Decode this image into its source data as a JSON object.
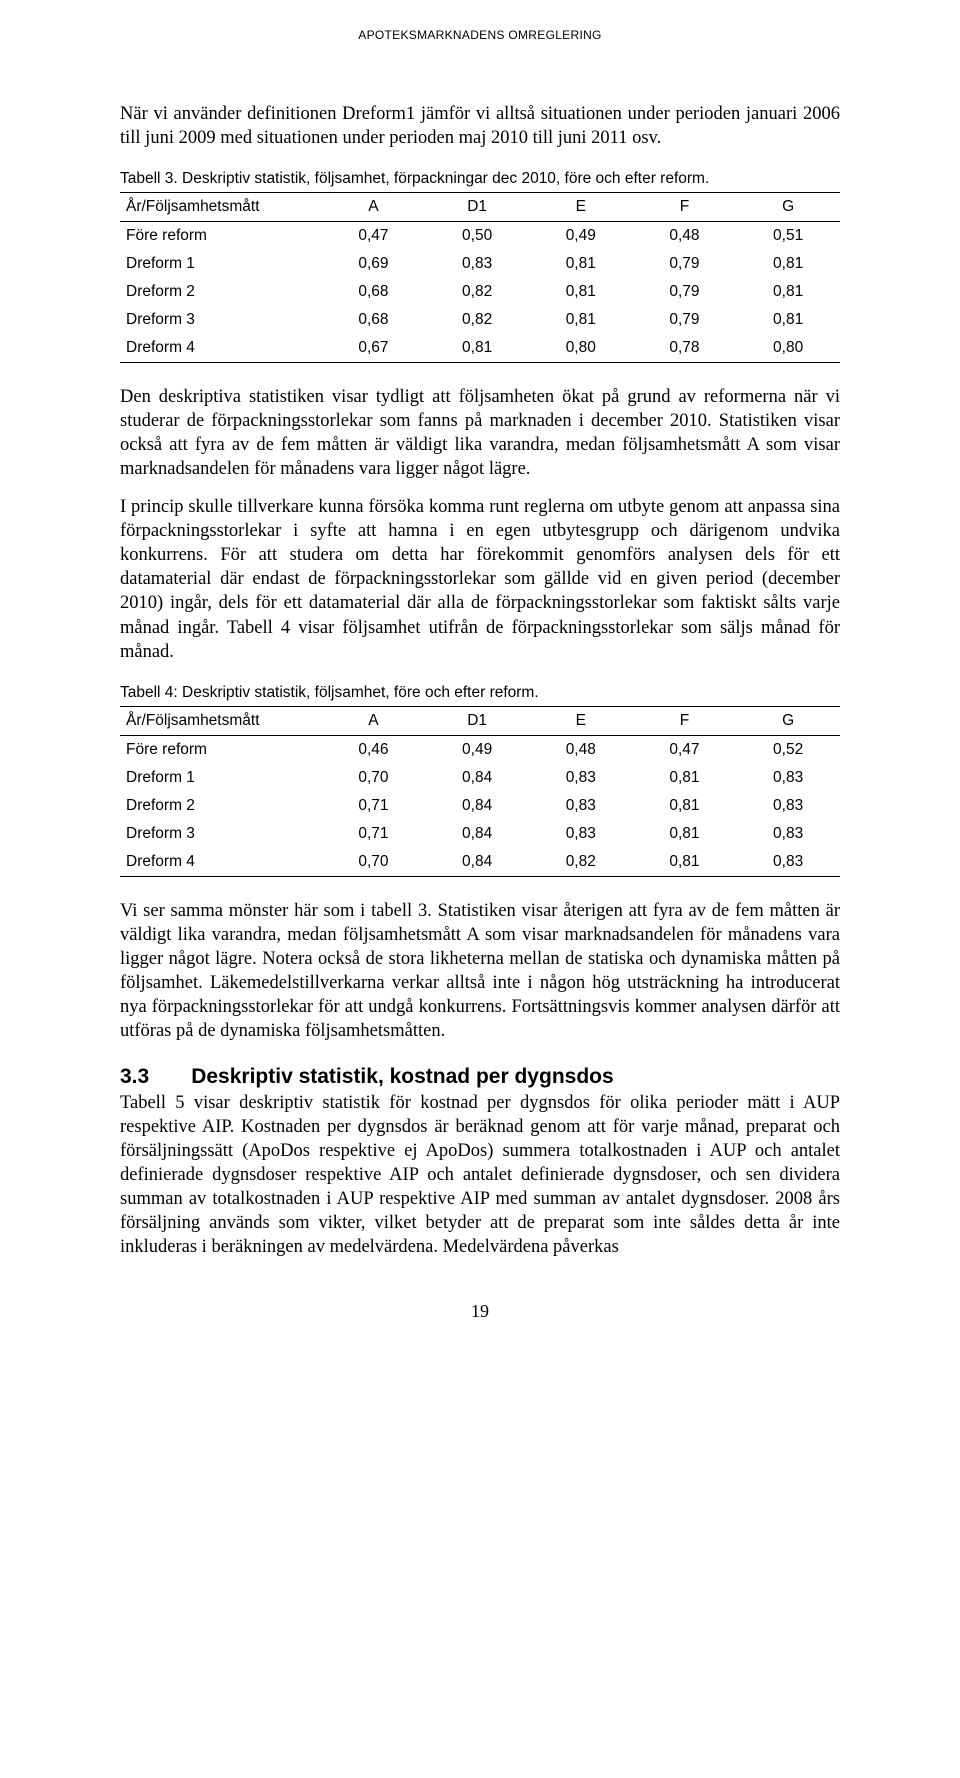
{
  "header": "APOTEKSMARKNADENS OMREGLERING",
  "p1": "När vi använder definitionen Dreform1 jämför vi alltså situationen under perioden januari 2006 till juni 2009 med situationen under perioden maj 2010 till juni 2011 osv.",
  "table3": {
    "caption": "Tabell 3. Deskriptiv statistik, följsamhet, förpackningar dec 2010, före och efter reform.",
    "headers": [
      "År/Följsamhetsmått",
      "A",
      "D1",
      "E",
      "F",
      "G"
    ],
    "rows": [
      [
        "Före reform",
        "0,47",
        "0,50",
        "0,49",
        "0,48",
        "0,51"
      ],
      [
        "Dreform 1",
        "0,69",
        "0,83",
        "0,81",
        "0,79",
        "0,81"
      ],
      [
        "Dreform 2",
        "0,68",
        "0,82",
        "0,81",
        "0,79",
        "0,81"
      ],
      [
        "Dreform 3",
        "0,68",
        "0,82",
        "0,81",
        "0,79",
        "0,81"
      ],
      [
        "Dreform 4",
        "0,67",
        "0,81",
        "0,80",
        "0,78",
        "0,80"
      ]
    ]
  },
  "p2": "Den deskriptiva statistiken visar tydligt att följsamheten ökat på grund av reformerna när vi studerar de förpackningsstorlekar som fanns på marknaden i december 2010. Statistiken visar också att fyra av de fem måtten är väldigt lika varandra, medan följsamhetsmått A som visar marknadsandelen för månadens vara ligger något lägre.",
  "p3": "I princip skulle tillverkare kunna försöka komma runt reglerna om utbyte genom att anpassa sina förpackningsstorlekar i syfte att hamna i en egen utbytesgrupp och därigenom undvika konkurrens. För att studera om detta har förekommit genomförs analysen dels för ett datamaterial där endast de förpackningsstorlekar som gällde vid en given period (december 2010) ingår, dels för ett datamaterial där alla de förpackningsstorlekar som faktiskt sålts varje månad ingår. Tabell 4 visar följsamhet utifrån de förpackningsstorlekar som säljs månad för månad.",
  "table4": {
    "caption": "Tabell 4: Deskriptiv statistik, följsamhet, före och efter reform.",
    "headers": [
      "År/Följsamhetsmått",
      "A",
      "D1",
      "E",
      "F",
      "G"
    ],
    "rows": [
      [
        "Före reform",
        "0,46",
        "0,49",
        "0,48",
        "0,47",
        "0,52"
      ],
      [
        "Dreform 1",
        "0,70",
        "0,84",
        "0,83",
        "0,81",
        "0,83"
      ],
      [
        "Dreform 2",
        "0,71",
        "0,84",
        "0,83",
        "0,81",
        "0,83"
      ],
      [
        "Dreform 3",
        "0,71",
        "0,84",
        "0,83",
        "0,81",
        "0,83"
      ],
      [
        "Dreform 4",
        "0,70",
        "0,84",
        "0,82",
        "0,81",
        "0,83"
      ]
    ]
  },
  "p4": "Vi ser samma mönster här som i tabell 3. Statistiken visar återigen att fyra av de fem måtten är väldigt lika varandra, medan följsamhetsmått A som visar marknadsandelen för månadens vara ligger något lägre. Notera också de stora likheterna mellan de statiska och dynamiska måtten på följsamhet. Läkemedelstillverkarna verkar alltså inte i någon hög utsträckning ha introducerat nya förpackningsstorlekar för att undgå konkurrens. Fortsättningsvis kommer analysen därför att utföras på de dynamiska följsamhetsmåtten.",
  "section": {
    "number": "3.3",
    "title": "Deskriptiv statistik, kostnad per dygnsdos"
  },
  "p5": "Tabell 5 visar deskriptiv statistik för kostnad per dygnsdos för olika perioder mätt i AUP respektive AIP. Kostnaden per dygnsdos är beräknad genom att för varje månad, preparat och försäljningssätt (ApoDos respektive ej ApoDos) summera totalkostnaden i AUP och antalet definierade dygnsdoser respektive AIP och antalet definierade dygnsdoser, och sen dividera summan av totalkostnaden i AUP respektive AIP med summan av antalet dygnsdoser. 2008 års försäljning används som vikter, vilket betyder att de preparat som inte såldes detta år inte inkluderas i beräkningen av medelvärdena. Medelvärdena påverkas",
  "pageNumber": "19"
}
